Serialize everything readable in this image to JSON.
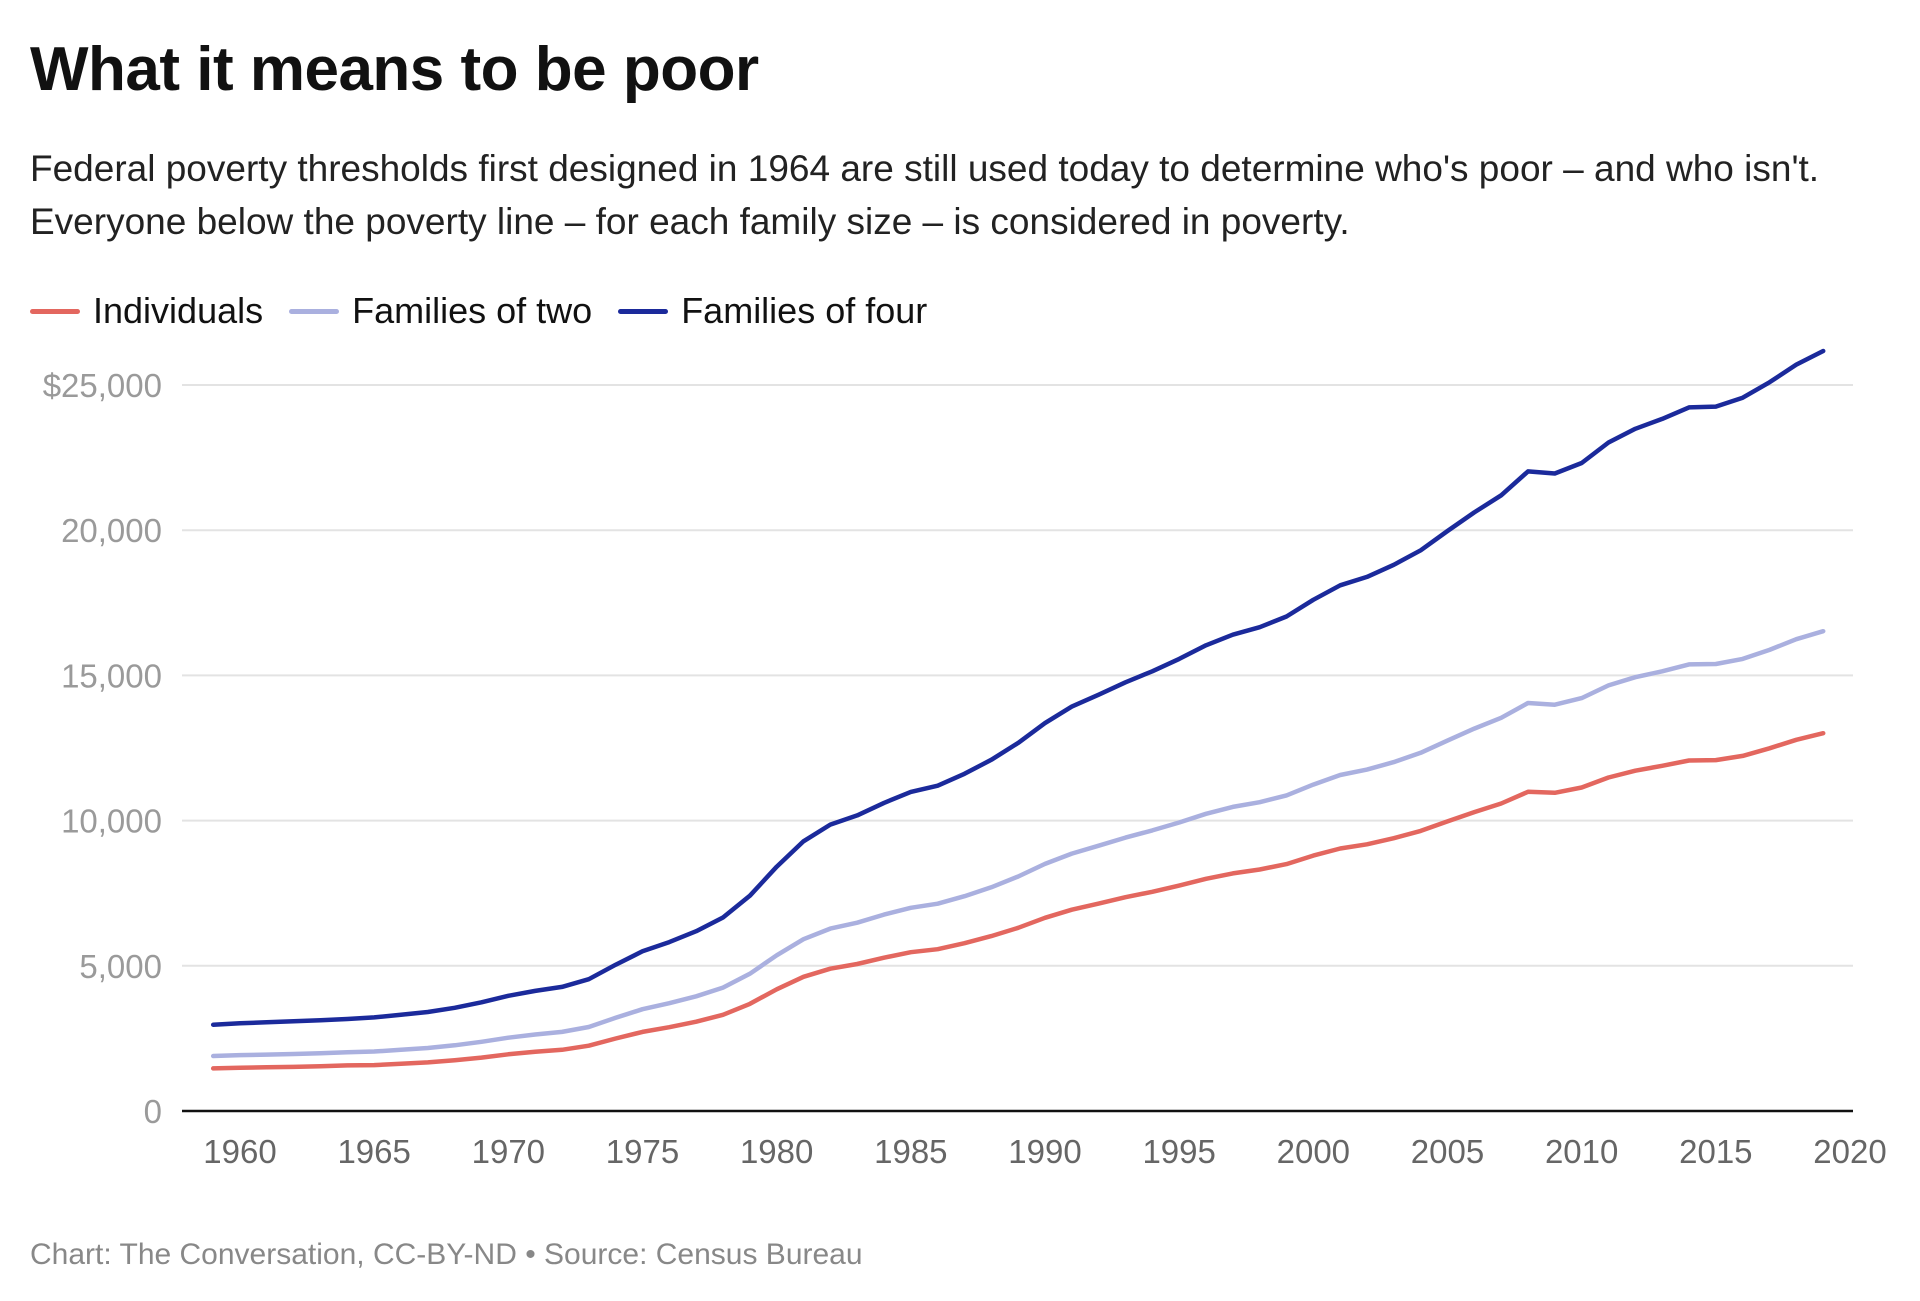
{
  "chart_data": {
    "type": "line",
    "title": "What it means to be poor",
    "subtitle": "Federal poverty thresholds first designed in 1964 are still used today to determine who's poor – and who isn't. Everyone below the poverty line – for each family size – is considered in poverty.",
    "xlabel": "",
    "ylabel": "",
    "xlim": [
      1958,
      2020
    ],
    "ylim": [
      0,
      26500
    ],
    "x_ticks": [
      "1960",
      "1965",
      "1970",
      "1975",
      "1980",
      "1985",
      "1990",
      "1995",
      "2000",
      "2005",
      "2010",
      "2015",
      "2020"
    ],
    "y_ticks": [
      {
        "value": 0,
        "label": "0"
      },
      {
        "value": 5000,
        "label": "5,000"
      },
      {
        "value": 10000,
        "label": "10,000"
      },
      {
        "value": 15000,
        "label": "15,000"
      },
      {
        "value": 20000,
        "label": "20,000"
      },
      {
        "value": 25000,
        "label": "$25,000"
      }
    ],
    "grid": true,
    "legend_position": "top-left",
    "x": [
      1959,
      1960,
      1961,
      1962,
      1963,
      1964,
      1965,
      1966,
      1967,
      1968,
      1969,
      1970,
      1971,
      1972,
      1973,
      1974,
      1975,
      1976,
      1977,
      1978,
      1979,
      1980,
      1981,
      1982,
      1983,
      1984,
      1985,
      1986,
      1987,
      1988,
      1989,
      1990,
      1991,
      1992,
      1993,
      1994,
      1995,
      1996,
      1997,
      1998,
      1999,
      2000,
      2001,
      2002,
      2003,
      2004,
      2005,
      2006,
      2007,
      2008,
      2009,
      2010,
      2011,
      2012,
      2013,
      2014,
      2015,
      2016,
      2017,
      2018,
      2019
    ],
    "series": [
      {
        "name": "Individuals",
        "color": "#e3675f",
        "values": [
          1467,
          1490,
          1506,
          1519,
          1539,
          1571,
          1582,
          1628,
          1675,
          1748,
          1840,
          1954,
          2040,
          2109,
          2247,
          2495,
          2724,
          2884,
          3075,
          3311,
          3689,
          4190,
          4620,
          4901,
          5061,
          5278,
          5469,
          5572,
          5778,
          6022,
          6310,
          6652,
          6932,
          7143,
          7363,
          7547,
          7763,
          7995,
          8183,
          8316,
          8501,
          8794,
          9039,
          9183,
          9393,
          9645,
          9973,
          10294,
          10590,
          10991,
          10956,
          11139,
          11484,
          11720,
          11888,
          12071,
          12082,
          12228,
          12488,
          12784,
          13011
        ]
      },
      {
        "name": "Families of two",
        "color": "#aab0df",
        "values": [
          1894,
          1924,
          1942,
          1962,
          1988,
          2020,
          2048,
          2107,
          2168,
          2262,
          2383,
          2525,
          2633,
          2724,
          2892,
          3211,
          3506,
          3711,
          3951,
          4249,
          4725,
          5363,
          5917,
          6281,
          6483,
          6762,
          6998,
          7138,
          7397,
          7704,
          8076,
          8509,
          8865,
          9137,
          9414,
          9661,
          9933,
          10233,
          10473,
          10634,
          10869,
          11239,
          11569,
          11756,
          12015,
          12334,
          12755,
          13167,
          13540,
          14051,
          13991,
          14218,
          14657,
          14937,
          15142,
          15379,
          15391,
          15569,
          15877,
          16247,
          16521
        ]
      },
      {
        "name": "Families of four",
        "color": "#1b2a9b",
        "values": [
          2973,
          3022,
          3054,
          3089,
          3128,
          3169,
          3223,
          3317,
          3410,
          3553,
          3743,
          3968,
          4137,
          4275,
          4540,
          5038,
          5500,
          5815,
          6191,
          6662,
          7412,
          8414,
          9287,
          9862,
          10178,
          10609,
          10989,
          11203,
          11611,
          12092,
          12674,
          13359,
          13924,
          14335,
          14763,
          15141,
          15569,
          16036,
          16400,
          16660,
          17029,
          17603,
          18104,
          18392,
          18810,
          19307,
          19971,
          20614,
          21203,
          22025,
          21954,
          22314,
          23021,
          23492,
          23834,
          24230,
          24257,
          24563,
          25094,
          25701,
          26172
        ]
      }
    ],
    "footer": "Chart: The Conversation, CC-BY-ND • Source: Census Bureau"
  }
}
